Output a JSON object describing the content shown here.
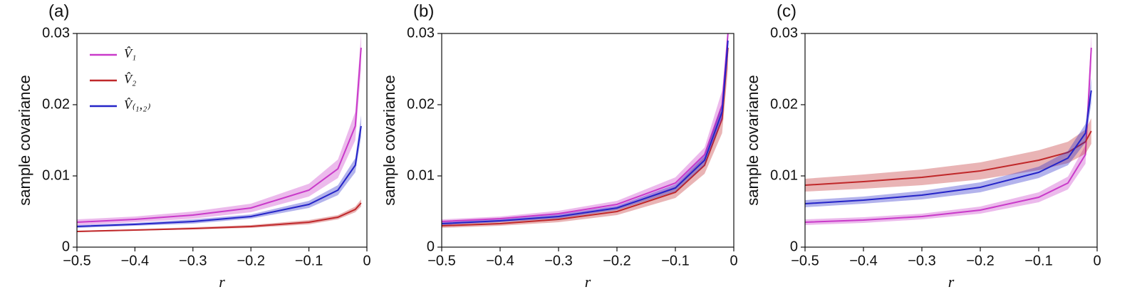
{
  "chart_data": [
    {
      "type": "line",
      "panel_label": "(a)",
      "ylabel": "sample covariance",
      "xlabel": "r",
      "xlim": [
        -0.5,
        0
      ],
      "ylim": [
        0,
        0.03
      ],
      "xticks": [
        {
          "value": -0.5,
          "label": "−0.5"
        },
        {
          "value": -0.4,
          "label": "−0.4"
        },
        {
          "value": -0.3,
          "label": "−0.3"
        },
        {
          "value": -0.2,
          "label": "−0.2"
        },
        {
          "value": -0.1,
          "label": "−0.1"
        },
        0
      ],
      "yticks": [
        0,
        0.01,
        0.02,
        0.03
      ],
      "legend": "upper left",
      "x": [
        -0.5,
        -0.4,
        -0.3,
        -0.2,
        -0.1,
        -0.05,
        -0.02,
        -0.01
      ],
      "series": [
        {
          "name": "V̂₁",
          "color": "#c93ac9",
          "values": [
            0.0035,
            0.0039,
            0.0045,
            0.0055,
            0.008,
            0.011,
            0.017,
            0.028
          ],
          "lower": [
            0.0031,
            0.0035,
            0.004,
            0.0049,
            0.0071,
            0.0097,
            0.015,
            0.025
          ],
          "upper": [
            0.0039,
            0.0043,
            0.005,
            0.0061,
            0.0089,
            0.0123,
            0.019,
            0.03
          ]
        },
        {
          "name": "V̂₂",
          "color": "#c0282a",
          "values": [
            0.0022,
            0.0024,
            0.0026,
            0.0029,
            0.0035,
            0.0042,
            0.0053,
            0.0062
          ],
          "lower": [
            0.0021,
            0.0023,
            0.0025,
            0.0027,
            0.0032,
            0.0039,
            0.0049,
            0.0057
          ],
          "upper": [
            0.0023,
            0.0025,
            0.0028,
            0.0031,
            0.0038,
            0.0045,
            0.0057,
            0.0067
          ]
        },
        {
          "name": "V̂₍₁,₂₎",
          "color": "#2424c8",
          "values": [
            0.0029,
            0.0032,
            0.0036,
            0.0043,
            0.006,
            0.008,
            0.0115,
            0.017
          ],
          "lower": [
            0.0027,
            0.003,
            0.0033,
            0.004,
            0.0055,
            0.0073,
            0.0105,
            0.0155
          ],
          "upper": [
            0.0031,
            0.0034,
            0.0039,
            0.0046,
            0.0065,
            0.0087,
            0.0125,
            0.0185
          ]
        }
      ]
    },
    {
      "type": "line",
      "panel_label": "(b)",
      "ylabel": "sample covariance",
      "xlabel": "r",
      "xlim": [
        -0.5,
        0
      ],
      "ylim": [
        0,
        0.03
      ],
      "xticks": [
        {
          "value": -0.5,
          "label": "−0.5"
        },
        {
          "value": -0.4,
          "label": "−0.4"
        },
        {
          "value": -0.3,
          "label": "−0.3"
        },
        {
          "value": -0.2,
          "label": "−0.2"
        },
        {
          "value": -0.1,
          "label": "−0.1"
        },
        0
      ],
      "yticks": [
        0,
        0.01,
        0.02,
        0.03
      ],
      "x": [
        -0.5,
        -0.4,
        -0.3,
        -0.2,
        -0.1,
        -0.05,
        -0.02,
        -0.01
      ],
      "series": [
        {
          "color": "#c0282a",
          "values": [
            0.003,
            0.0033,
            0.0039,
            0.005,
            0.0077,
            0.0115,
            0.018,
            0.028
          ],
          "lower": [
            0.0027,
            0.003,
            0.0035,
            0.0045,
            0.0069,
            0.0103,
            0.016,
            0.025
          ],
          "upper": [
            0.0033,
            0.0036,
            0.0043,
            0.0055,
            0.0085,
            0.0127,
            0.02,
            0.03
          ]
        },
        {
          "color": "#c93ac9",
          "values": [
            0.0036,
            0.004,
            0.0047,
            0.006,
            0.009,
            0.013,
            0.02,
            0.03
          ],
          "lower": [
            0.0033,
            0.0037,
            0.0043,
            0.0055,
            0.0082,
            0.012,
            0.018,
            0.027
          ],
          "upper": [
            0.0039,
            0.0043,
            0.0051,
            0.0065,
            0.0098,
            0.014,
            0.022,
            0.03
          ]
        },
        {
          "color": "#2424c8",
          "values": [
            0.0033,
            0.0037,
            0.0043,
            0.0055,
            0.0083,
            0.0122,
            0.019,
            0.029
          ],
          "lower": [
            0.0031,
            0.0035,
            0.004,
            0.0052,
            0.0078,
            0.0115,
            0.018,
            0.027
          ],
          "upper": [
            0.0035,
            0.0039,
            0.0046,
            0.0058,
            0.0088,
            0.0129,
            0.02,
            0.03
          ]
        }
      ]
    },
    {
      "type": "line",
      "panel_label": "(c)",
      "ylabel": "sample covariance",
      "xlabel": "r",
      "xlim": [
        -0.5,
        0
      ],
      "ylim": [
        0,
        0.03
      ],
      "xticks": [
        {
          "value": -0.5,
          "label": "−0.5"
        },
        {
          "value": -0.4,
          "label": "−0.4"
        },
        {
          "value": -0.3,
          "label": "−0.3"
        },
        {
          "value": -0.2,
          "label": "−0.2"
        },
        {
          "value": -0.1,
          "label": "−0.1"
        },
        0
      ],
      "yticks": [
        0,
        0.01,
        0.02,
        0.03
      ],
      "x": [
        -0.5,
        -0.4,
        -0.3,
        -0.2,
        -0.1,
        -0.05,
        -0.02,
        -0.01
      ],
      "series": [
        {
          "color": "#c93ac9",
          "values": [
            0.0035,
            0.0038,
            0.0043,
            0.0052,
            0.007,
            0.009,
            0.013,
            0.028
          ],
          "lower": [
            0.0031,
            0.0034,
            0.0039,
            0.0047,
            0.0063,
            0.0081,
            0.0117,
            0.025
          ],
          "upper": [
            0.0039,
            0.0042,
            0.0047,
            0.0057,
            0.0077,
            0.0099,
            0.0143,
            0.03
          ]
        },
        {
          "color": "#c0282a",
          "values": [
            0.0087,
            0.0092,
            0.0098,
            0.0107,
            0.0122,
            0.0133,
            0.0148,
            0.0163
          ],
          "lower": [
            0.0078,
            0.0082,
            0.0087,
            0.0095,
            0.0108,
            0.0118,
            0.0131,
            0.0145
          ],
          "upper": [
            0.0096,
            0.0102,
            0.0109,
            0.0119,
            0.0136,
            0.0148,
            0.0165,
            0.0181
          ]
        },
        {
          "color": "#2424c8",
          "values": [
            0.0061,
            0.0066,
            0.0073,
            0.0084,
            0.0105,
            0.0125,
            0.016,
            0.022
          ],
          "lower": [
            0.0056,
            0.0061,
            0.0067,
            0.0077,
            0.0097,
            0.0115,
            0.0147,
            0.0202
          ],
          "upper": [
            0.0066,
            0.0071,
            0.0079,
            0.0091,
            0.0113,
            0.0135,
            0.0173,
            0.0238
          ]
        }
      ]
    }
  ]
}
